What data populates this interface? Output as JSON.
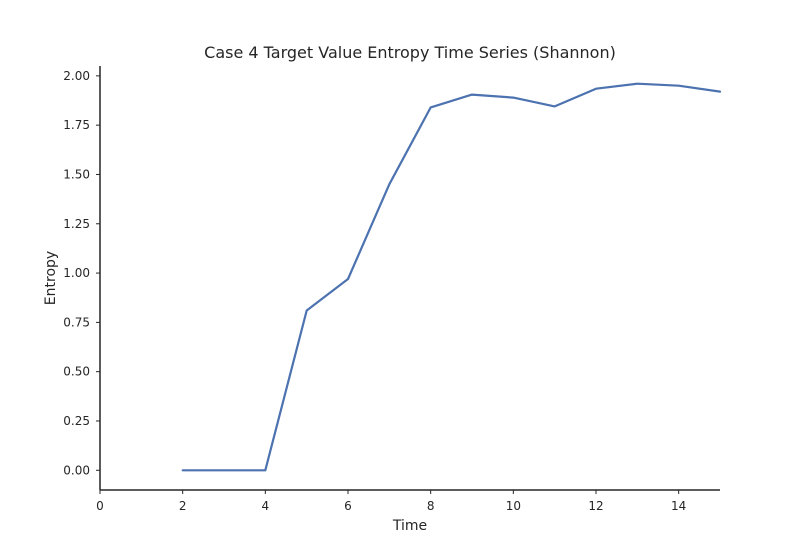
{
  "chart_data": {
    "type": "line",
    "title": "Case 4 Target Value Entropy Time Series (Shannon)",
    "xlabel": "Time",
    "ylabel": "Entropy",
    "xlim": [
      0,
      15
    ],
    "ylim": [
      -0.1,
      2.05
    ],
    "x_ticks": [
      0,
      2,
      4,
      6,
      8,
      10,
      12,
      14
    ],
    "x_tick_labels": [
      "0",
      "2",
      "4",
      "6",
      "8",
      "10",
      "12",
      "14"
    ],
    "y_ticks": [
      0.0,
      0.25,
      0.5,
      0.75,
      1.0,
      1.25,
      1.5,
      1.75,
      2.0
    ],
    "y_tick_labels": [
      "0.00",
      "0.25",
      "0.50",
      "0.75",
      "1.00",
      "1.25",
      "1.50",
      "1.75",
      "2.00"
    ],
    "grid": false,
    "series": [
      {
        "color": "#4c72b0",
        "x": [
          2,
          3,
          4,
          5,
          6,
          7,
          8,
          9,
          10,
          11,
          12,
          13,
          14,
          15
        ],
        "y": [
          0.0,
          0.0,
          0.0,
          0.81,
          0.97,
          1.45,
          1.84,
          1.905,
          1.89,
          1.845,
          1.935,
          1.96,
          1.95,
          1.92
        ]
      }
    ]
  }
}
